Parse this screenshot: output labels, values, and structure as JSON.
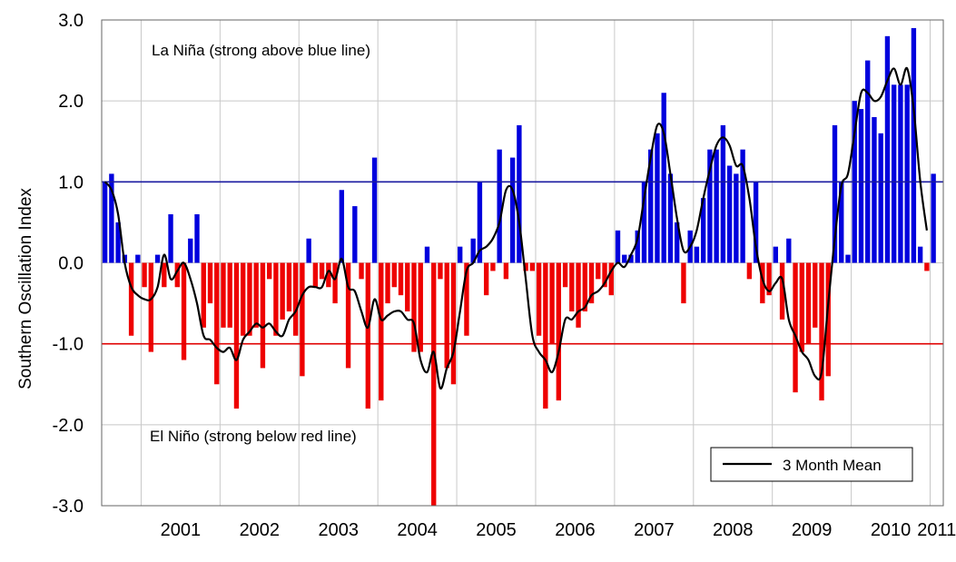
{
  "chart_data": {
    "type": "bar",
    "ylabel": "Southern Oscillation Index",
    "ylim": [
      -3.0,
      3.0
    ],
    "yticks": [
      3.0,
      2.0,
      1.0,
      0.0,
      -1.0,
      -2.0,
      -3.0
    ],
    "ytick_labels": [
      "3.0",
      "2.0",
      "1.0",
      "0.0",
      "-1.0",
      "-2.0",
      "-3.0"
    ],
    "x_start": "2000-07",
    "x_end": "2011-02",
    "x_labels": [
      "2001",
      "2002",
      "2003",
      "2004",
      "2005",
      "2006",
      "2007",
      "2008",
      "2009",
      "2010",
      "2011"
    ],
    "grid": true,
    "reference_lines": [
      {
        "value": 1.0,
        "color": "#1a1aa0"
      },
      {
        "value": -1.0,
        "color": "#e00000"
      }
    ],
    "annotations": {
      "la_nina": "La Niña (strong above blue line)",
      "el_nino": "El Niño (strong below red line)"
    },
    "colors": {
      "positive": "#0000dd",
      "negative": "#ee0000",
      "mean_line": "#000000"
    },
    "legend": {
      "position": "bottom-right",
      "label": "3 Month Mean"
    },
    "series": [
      {
        "kind": "monthly_bars",
        "months": [
          "2000-07",
          "2000-08",
          "2000-09",
          "2000-10",
          "2000-11",
          "2000-12",
          "2001-01",
          "2001-02",
          "2001-03",
          "2001-04",
          "2001-05",
          "2001-06",
          "2001-07",
          "2001-08",
          "2001-09",
          "2001-10",
          "2001-11",
          "2001-12",
          "2002-01",
          "2002-02",
          "2002-03",
          "2002-04",
          "2002-05",
          "2002-06",
          "2002-07",
          "2002-08",
          "2002-09",
          "2002-10",
          "2002-11",
          "2002-12",
          "2003-01",
          "2003-02",
          "2003-03",
          "2003-04",
          "2003-05",
          "2003-06",
          "2003-07",
          "2003-08",
          "2003-09",
          "2003-10",
          "2003-11",
          "2003-12",
          "2004-01",
          "2004-02",
          "2004-03",
          "2004-04",
          "2004-05",
          "2004-06",
          "2004-07",
          "2004-08",
          "2004-09",
          "2004-10",
          "2004-11",
          "2004-12",
          "2005-01",
          "2005-02",
          "2005-03",
          "2005-04",
          "2005-05",
          "2005-06",
          "2005-07",
          "2005-08",
          "2005-09",
          "2005-10",
          "2005-11",
          "2005-12",
          "2006-01",
          "2006-02",
          "2006-03",
          "2006-04",
          "2006-05",
          "2006-06",
          "2006-07",
          "2006-08",
          "2006-09",
          "2006-10",
          "2006-11",
          "2006-12",
          "2007-01",
          "2007-02",
          "2007-03",
          "2007-04",
          "2007-05",
          "2007-06",
          "2007-07",
          "2007-08",
          "2007-09",
          "2007-10",
          "2007-11",
          "2007-12",
          "2008-01",
          "2008-02",
          "2008-03",
          "2008-04",
          "2008-05",
          "2008-06",
          "2008-07",
          "2008-08",
          "2008-09",
          "2008-10",
          "2008-11",
          "2008-12",
          "2009-01",
          "2009-02",
          "2009-03",
          "2009-04",
          "2009-05",
          "2009-06",
          "2009-07",
          "2009-08",
          "2009-09",
          "2009-10",
          "2009-11",
          "2009-12",
          "2010-01",
          "2010-02",
          "2010-03",
          "2010-04",
          "2010-05",
          "2010-06",
          "2010-07",
          "2010-08",
          "2010-09",
          "2010-10",
          "2010-11",
          "2010-12",
          "2011-01",
          "2011-02"
        ],
        "values": [
          1.0,
          1.1,
          0.5,
          0.1,
          -0.9,
          0.1,
          -0.3,
          -1.1,
          0.1,
          -0.3,
          0.6,
          -0.3,
          -1.2,
          0.3,
          0.6,
          -0.8,
          -0.5,
          -1.5,
          -0.8,
          -0.8,
          -1.8,
          -0.9,
          -0.9,
          -0.8,
          -1.3,
          -0.2,
          -0.9,
          -0.7,
          -0.6,
          -0.9,
          -1.4,
          0.3,
          -0.3,
          -0.2,
          -0.3,
          -0.5,
          0.9,
          -1.3,
          0.7,
          -0.2,
          -1.8,
          1.3,
          -1.7,
          -0.5,
          -0.3,
          -0.4,
          -0.6,
          -1.1,
          -1.1,
          0.2,
          -3.0,
          -0.2,
          -1.3,
          -1.5,
          0.2,
          -0.9,
          0.3,
          1.0,
          -0.4,
          -0.1,
          1.4,
          -0.2,
          1.3,
          1.7,
          -0.1,
          -0.1,
          -0.9,
          -1.8,
          -1.0,
          -1.7,
          -0.3,
          -0.6,
          -0.8,
          -0.6,
          -0.5,
          -0.2,
          -0.3,
          -0.4,
          0.4,
          0.1,
          0.1,
          0.4,
          1.0,
          1.4,
          1.6,
          2.1,
          1.1,
          0.5,
          -0.5,
          0.4,
          0.2,
          0.8,
          1.4,
          1.4,
          1.7,
          1.2,
          1.1,
          1.4,
          -0.2,
          1.0,
          -0.5,
          -0.4,
          0.2,
          -0.7,
          0.3,
          -1.6,
          -1.1,
          -1.0,
          -0.8,
          -1.7,
          -1.4,
          1.7,
          1.0,
          0.1,
          2.0,
          1.9,
          2.5,
          1.8,
          1.6,
          2.8,
          2.2,
          2.2,
          2.2,
          2.9,
          0.2,
          -0.1,
          1.1,
          null
        ]
      },
      {
        "kind": "line",
        "name": "3 Month Mean",
        "x": [
          "2000-07",
          "2000-08",
          "2000-09",
          "2000-10",
          "2000-11",
          "2000-12",
          "2001-01",
          "2001-02",
          "2001-03",
          "2001-04",
          "2001-05",
          "2001-06",
          "2001-07",
          "2001-08",
          "2001-09",
          "2001-10",
          "2001-11",
          "2001-12",
          "2002-01",
          "2002-02",
          "2002-03",
          "2002-04",
          "2002-05",
          "2002-06",
          "2002-07",
          "2002-08",
          "2002-09",
          "2002-10",
          "2002-11",
          "2002-12",
          "2003-01",
          "2003-02",
          "2003-03",
          "2003-04",
          "2003-05",
          "2003-06",
          "2003-07",
          "2003-08",
          "2003-09",
          "2003-10",
          "2003-11",
          "2003-12",
          "2004-01",
          "2004-02",
          "2004-03",
          "2004-04",
          "2004-05",
          "2004-06",
          "2004-07",
          "2004-08",
          "2004-09",
          "2004-10",
          "2004-11",
          "2004-12",
          "2005-01",
          "2005-02",
          "2005-03",
          "2005-04",
          "2005-05",
          "2005-06",
          "2005-07",
          "2005-08",
          "2005-09",
          "2005-10",
          "2005-11",
          "2005-12",
          "2006-01",
          "2006-02",
          "2006-03",
          "2006-04",
          "2006-05",
          "2006-06",
          "2006-07",
          "2006-08",
          "2006-09",
          "2006-10",
          "2006-11",
          "2006-12",
          "2007-01",
          "2007-02",
          "2007-03",
          "2007-04",
          "2007-05",
          "2007-06",
          "2007-07",
          "2007-08",
          "2007-09",
          "2007-10",
          "2007-11",
          "2007-12",
          "2008-01",
          "2008-02",
          "2008-03",
          "2008-04",
          "2008-05",
          "2008-06",
          "2008-07",
          "2008-08",
          "2008-09",
          "2008-10",
          "2008-11",
          "2008-12",
          "2009-01",
          "2009-02",
          "2009-03",
          "2009-04",
          "2009-05",
          "2009-06",
          "2009-07",
          "2009-08",
          "2009-09",
          "2009-10",
          "2009-11",
          "2009-12",
          "2010-01",
          "2010-02",
          "2010-03",
          "2010-04",
          "2010-05",
          "2010-06",
          "2010-07",
          "2010-08",
          "2010-09",
          "2010-10",
          "2010-11",
          "2010-12"
        ],
        "values": [
          1.0,
          0.9,
          0.6,
          0.0,
          -0.3,
          -0.4,
          -0.45,
          -0.45,
          -0.3,
          0.1,
          -0.2,
          -0.1,
          0.0,
          -0.2,
          -0.5,
          -0.9,
          -0.95,
          -1.05,
          -1.1,
          -1.05,
          -1.2,
          -0.95,
          -0.85,
          -0.75,
          -0.8,
          -0.75,
          -0.85,
          -0.9,
          -0.7,
          -0.6,
          -0.4,
          -0.3,
          -0.3,
          -0.3,
          -0.1,
          -0.2,
          0.05,
          -0.3,
          -0.35,
          -0.6,
          -0.8,
          -0.45,
          -0.7,
          -0.65,
          -0.6,
          -0.6,
          -0.7,
          -0.75,
          -1.2,
          -1.35,
          -1.1,
          -1.55,
          -1.3,
          -1.1,
          -0.6,
          -0.1,
          0.0,
          0.15,
          0.2,
          0.3,
          0.5,
          0.9,
          0.9,
          0.5,
          -0.2,
          -0.9,
          -1.1,
          -1.2,
          -1.35,
          -1.1,
          -0.7,
          -0.7,
          -0.6,
          -0.55,
          -0.4,
          -0.35,
          -0.25,
          -0.1,
          0.0,
          -0.05,
          0.1,
          0.3,
          0.8,
          1.3,
          1.7,
          1.6,
          1.1,
          0.55,
          0.15,
          0.2,
          0.4,
          0.8,
          1.15,
          1.45,
          1.55,
          1.45,
          1.2,
          1.2,
          0.8,
          0.2,
          -0.2,
          -0.35,
          -0.25,
          -0.2,
          -0.7,
          -0.9,
          -1.1,
          -1.2,
          -1.4,
          -1.35,
          -0.5,
          0.3,
          0.95,
          1.1,
          1.6,
          2.1,
          2.1,
          2.0,
          2.05,
          2.25,
          2.4,
          2.2,
          2.4,
          1.9,
          1.0,
          0.4
        ]
      }
    ]
  }
}
